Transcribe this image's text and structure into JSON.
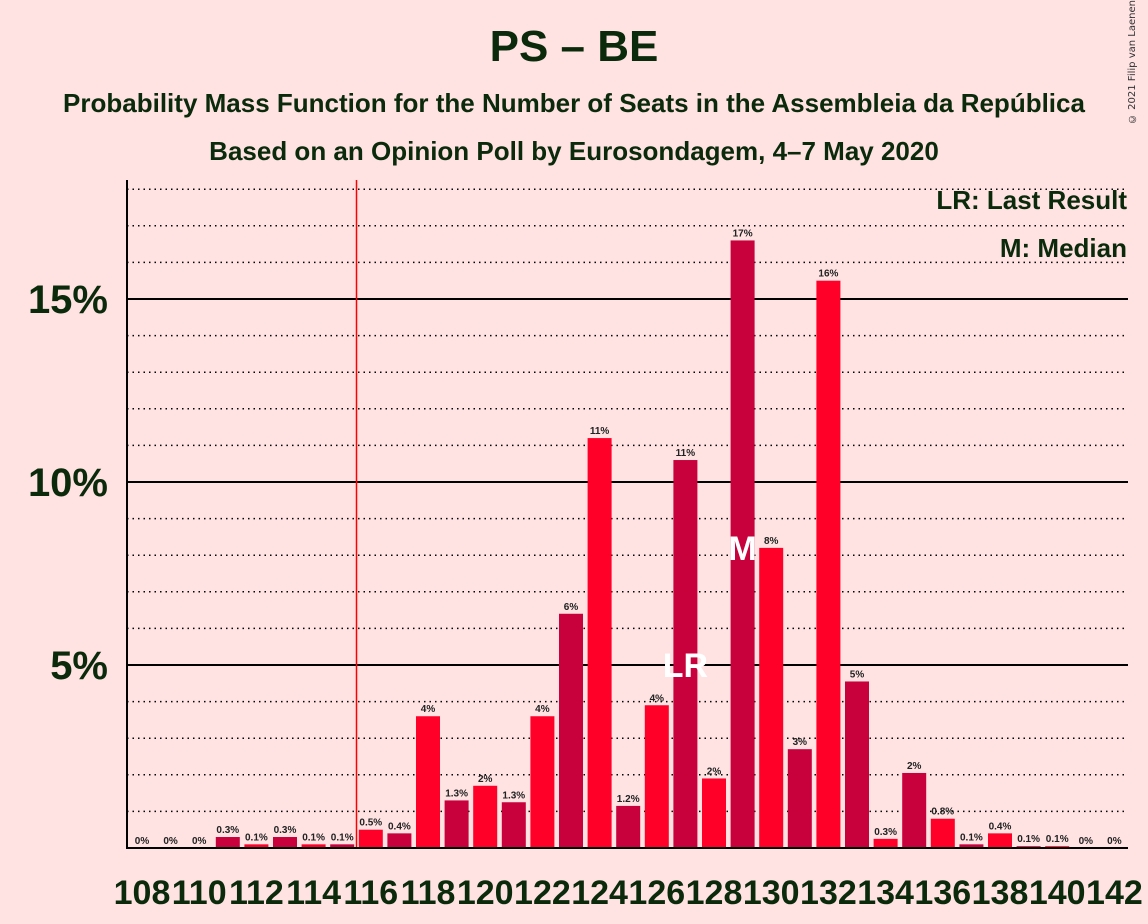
{
  "title": "PS – BE",
  "subtitle1": "Probability Mass Function for the Number of Seats in the Assembleia da República",
  "subtitle2": "Based on an Opinion Poll by Eurosondagem, 4–7 May 2020",
  "copyright": "© 2021 Filip van Laenen",
  "colors": {
    "background": "#FFE2E2",
    "bar_dark": "#C8003C",
    "bar_light": "#FF0028",
    "axis": "#0B2A0B",
    "last_result_line": "#FF0000"
  },
  "chart_data": {
    "type": "bar",
    "xlabel": "",
    "ylabel": "",
    "ylim": [
      0,
      18
    ],
    "yticks": [
      {
        "value": 5,
        "label": "5%"
      },
      {
        "value": 10,
        "label": "10%"
      },
      {
        "value": 15,
        "label": "15%"
      }
    ],
    "xtick_labels": [
      "108",
      "110",
      "112",
      "114",
      "116",
      "118",
      "120",
      "122",
      "124",
      "126",
      "128",
      "130",
      "132",
      "134",
      "136",
      "138",
      "140",
      "142"
    ],
    "legend": [
      "LR: Last Result",
      "M: Median"
    ],
    "legend_position": "top-right",
    "last_result_seat": 127,
    "median_seat": 129,
    "last_result_line_at": 115.5,
    "bars": [
      {
        "seat": 108,
        "value": 0,
        "label": "0%"
      },
      {
        "seat": 109,
        "value": 0,
        "label": "0%"
      },
      {
        "seat": 110,
        "value": 0,
        "label": "0%"
      },
      {
        "seat": 111,
        "value": 0.3,
        "label": "0.3%"
      },
      {
        "seat": 112,
        "value": 0.1,
        "label": "0.1%"
      },
      {
        "seat": 113,
        "value": 0.3,
        "label": "0.3%"
      },
      {
        "seat": 114,
        "value": 0.1,
        "label": "0.1%"
      },
      {
        "seat": 115,
        "value": 0.1,
        "label": "0.1%"
      },
      {
        "seat": 116,
        "value": 0.5,
        "label": "0.5%"
      },
      {
        "seat": 117,
        "value": 0.4,
        "label": "0.4%"
      },
      {
        "seat": 118,
        "value": 3.6,
        "label": "4%"
      },
      {
        "seat": 119,
        "value": 1.3,
        "label": "1.3%"
      },
      {
        "seat": 120,
        "value": 1.7,
        "label": "2%"
      },
      {
        "seat": 121,
        "value": 1.25,
        "label": "1.3%"
      },
      {
        "seat": 122,
        "value": 3.6,
        "label": "4%"
      },
      {
        "seat": 123,
        "value": 6.4,
        "label": "6%"
      },
      {
        "seat": 124,
        "value": 11.2,
        "label": "11%"
      },
      {
        "seat": 125,
        "value": 1.15,
        "label": "1.2%"
      },
      {
        "seat": 126,
        "value": 3.9,
        "label": "4%"
      },
      {
        "seat": 127,
        "value": 10.6,
        "label": "11%"
      },
      {
        "seat": 128,
        "value": 1.9,
        "label": "2%"
      },
      {
        "seat": 129,
        "value": 16.6,
        "label": "17%"
      },
      {
        "seat": 130,
        "value": 8.2,
        "label": "8%"
      },
      {
        "seat": 131,
        "value": 2.7,
        "label": "3%"
      },
      {
        "seat": 132,
        "value": 15.5,
        "label": "16%"
      },
      {
        "seat": 133,
        "value": 4.55,
        "label": "5%"
      },
      {
        "seat": 134,
        "value": 0.25,
        "label": "0.3%"
      },
      {
        "seat": 135,
        "value": 2.05,
        "label": "2%"
      },
      {
        "seat": 136,
        "value": 0.8,
        "label": "0.8%"
      },
      {
        "seat": 137,
        "value": 0.1,
        "label": "0.1%"
      },
      {
        "seat": 138,
        "value": 0.4,
        "label": "0.4%"
      },
      {
        "seat": 139,
        "value": 0.05,
        "label": "0.1%"
      },
      {
        "seat": 140,
        "value": 0.05,
        "label": "0.1%"
      },
      {
        "seat": 141,
        "value": 0,
        "label": "0%"
      },
      {
        "seat": 142,
        "value": 0,
        "label": "0%"
      }
    ],
    "markers": [
      {
        "seat": 127,
        "text": "LR"
      },
      {
        "seat": 129,
        "text": "M"
      }
    ]
  }
}
